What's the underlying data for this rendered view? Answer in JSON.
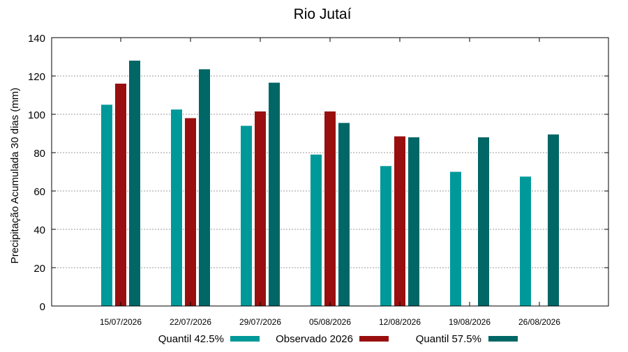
{
  "chart_data": {
    "type": "bar",
    "title": "Rio Jutaí",
    "ylabel": "Precipitação Acumulada 30 dias (mm)",
    "xlabel": "",
    "ylim": [
      0,
      140
    ],
    "yticks": [
      0,
      20,
      40,
      60,
      80,
      100,
      120,
      140
    ],
    "grid": true,
    "legend_position": "bottom",
    "categories": [
      "15/07/2026",
      "22/07/2026",
      "29/07/2026",
      "05/08/2026",
      "12/08/2026",
      "19/08/2026",
      "26/08/2026"
    ],
    "series": [
      {
        "name": "Quantil 42.5%",
        "color": "#009999",
        "values": [
          105,
          102.5,
          94,
          79,
          73,
          70,
          67.5
        ]
      },
      {
        "name": "Observado 2026",
        "color": "#990f0f",
        "values": [
          116,
          98,
          101.5,
          101.5,
          88.5,
          null,
          null
        ]
      },
      {
        "name": "Quantil 57.5%",
        "color": "#006666",
        "values": [
          128,
          123.5,
          116.5,
          95.5,
          88,
          88,
          89.5
        ]
      }
    ]
  }
}
